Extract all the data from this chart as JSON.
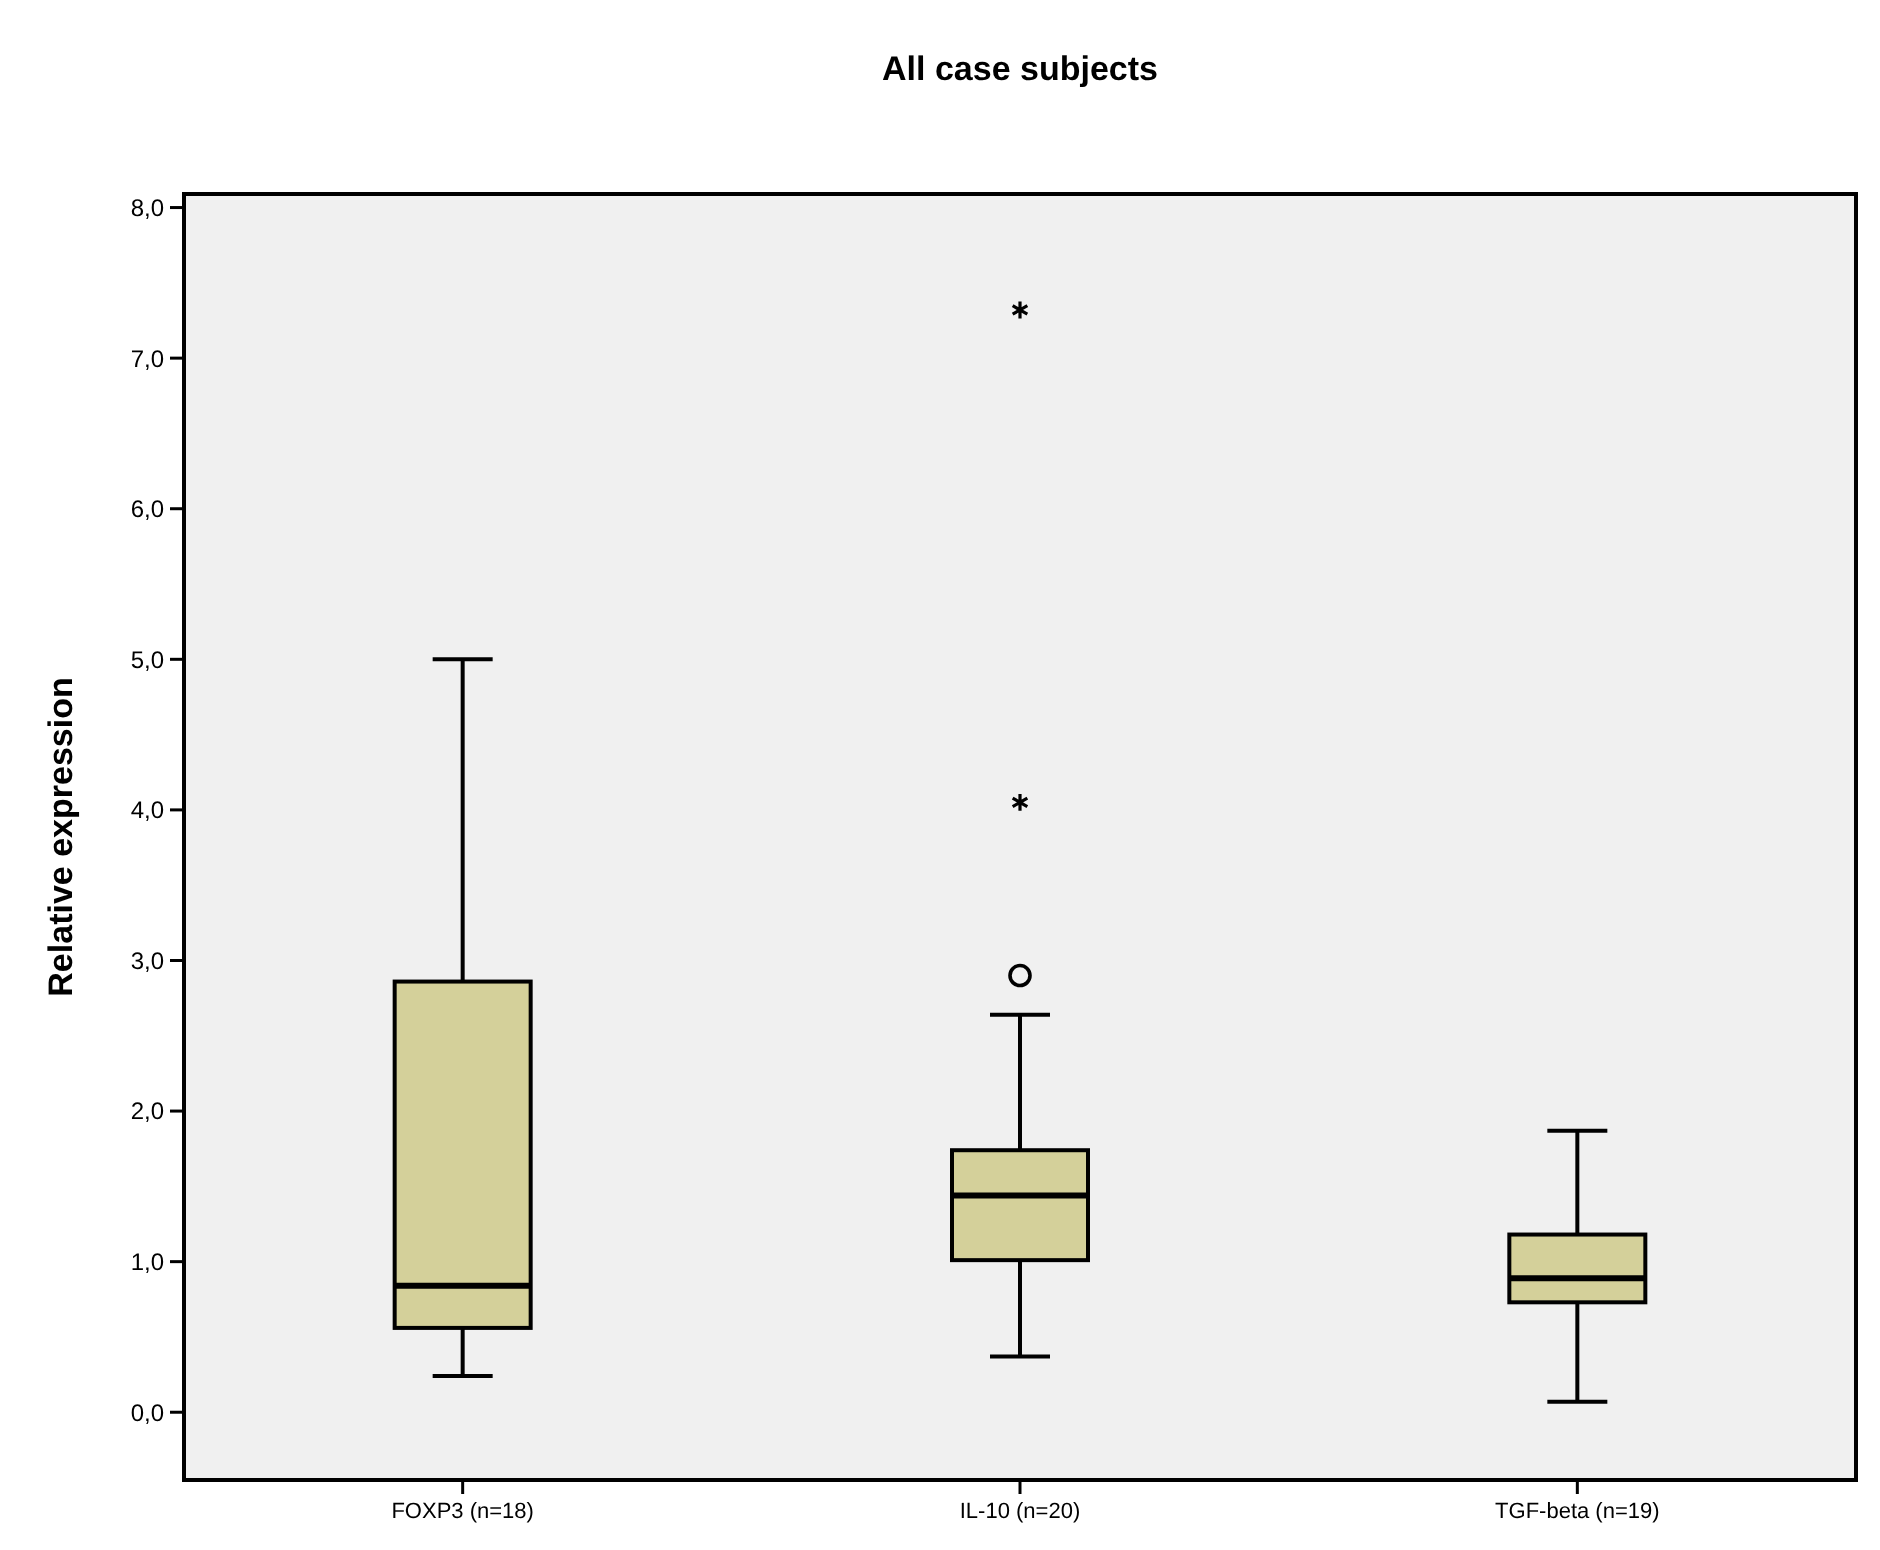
{
  "chart_data": {
    "type": "box",
    "title": "All case subjects",
    "ylabel": "Relative expression",
    "categories": [
      "FOXP3 (n=18)",
      "IL-10 (n=20)",
      "TGF-beta (n=19)"
    ],
    "color": "#d4d09a",
    "boxes": [
      {
        "low": 0.24,
        "q1": 0.56,
        "median": 0.84,
        "q3": 2.86,
        "high": 5.0
      },
      {
        "low": 0.37,
        "q1": 1.01,
        "median": 1.44,
        "q3": 1.74,
        "high": 2.64,
        "outliers": [
          2.9,
          4.05,
          7.32
        ]
      },
      {
        "low": 0.07,
        "q1": 0.73,
        "median": 0.89,
        "q3": 1.18,
        "high": 1.87
      }
    ],
    "ylim": [
      -0.45,
      8.09
    ],
    "yticks": [
      {
        "value": 0,
        "label": "0,0"
      },
      {
        "value": 1,
        "label": "1,0"
      },
      {
        "value": 2,
        "label": "2,0"
      },
      {
        "value": 3,
        "label": "3,0"
      },
      {
        "value": 4,
        "label": "4,0"
      },
      {
        "value": 5,
        "label": "5,0"
      },
      {
        "value": 6,
        "label": "6,0"
      },
      {
        "value": 7,
        "label": "7,0"
      },
      {
        "value": 8,
        "label": "8,0"
      }
    ],
    "grid": false
  }
}
